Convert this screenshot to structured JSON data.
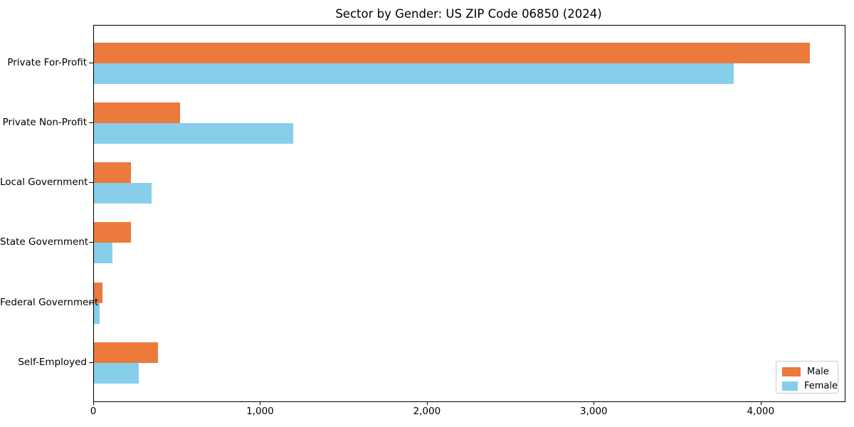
{
  "chart_data": {
    "type": "bar",
    "orientation": "horizontal",
    "title": "Sector by Gender: US ZIP Code 06850 (2024)",
    "categories": [
      "Private For-Profit",
      "Private Non-Profit",
      "Local Government",
      "State Government",
      "Federal Government",
      "Self-Employed"
    ],
    "series": [
      {
        "name": "Male",
        "color": "#EB7A3C",
        "values": [
          4290,
          515,
          220,
          220,
          50,
          385
        ]
      },
      {
        "name": "Female",
        "color": "#87CEEB",
        "values": [
          3835,
          1195,
          345,
          110,
          35,
          270
        ]
      }
    ],
    "xlabel": "",
    "ylabel": "",
    "xlim": [
      0,
      4500
    ],
    "x_ticks": [
      {
        "value": 0,
        "label": "0"
      },
      {
        "value": 1000,
        "label": "1,000"
      },
      {
        "value": 2000,
        "label": "2,000"
      },
      {
        "value": 3000,
        "label": "3,000"
      },
      {
        "value": 4000,
        "label": "4,000"
      }
    ],
    "grid": false,
    "legend": {
      "position": "lower right",
      "entries": [
        "Male",
        "Female"
      ]
    }
  }
}
